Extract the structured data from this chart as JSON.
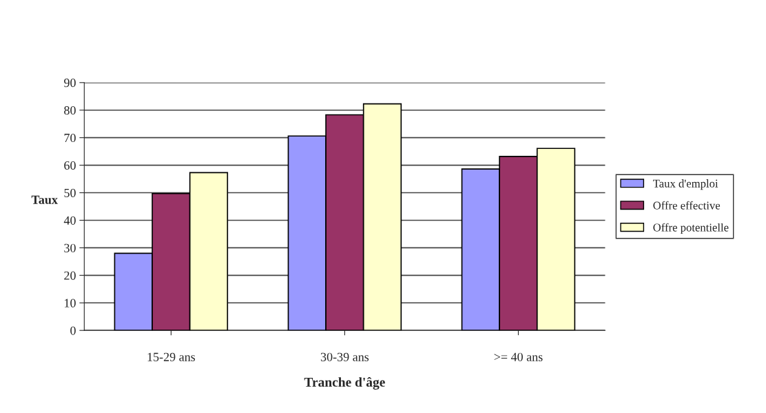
{
  "chart_data": {
    "type": "bar",
    "xlabel": "Tranche d'âge",
    "ylabel": "Taux",
    "categories": [
      "15-29 ans",
      "30-39 ans",
      ">= 40 ans"
    ],
    "series": [
      {
        "name": "Taux d'emploi",
        "color": "#9999ff",
        "values": [
          28,
          70.6,
          58.6
        ]
      },
      {
        "name": "Offre effective",
        "color": "#993366",
        "values": [
          49.7,
          78.3,
          63.2
        ]
      },
      {
        "name": "Offre potentielle",
        "color": "#ffffcc",
        "values": [
          57.3,
          82.3,
          66.1
        ]
      }
    ],
    "ylim": [
      0,
      90
    ],
    "yticks": [
      0,
      10,
      20,
      30,
      40,
      50,
      60,
      70,
      80,
      90
    ],
    "grid": "y",
    "legend": "right"
  }
}
